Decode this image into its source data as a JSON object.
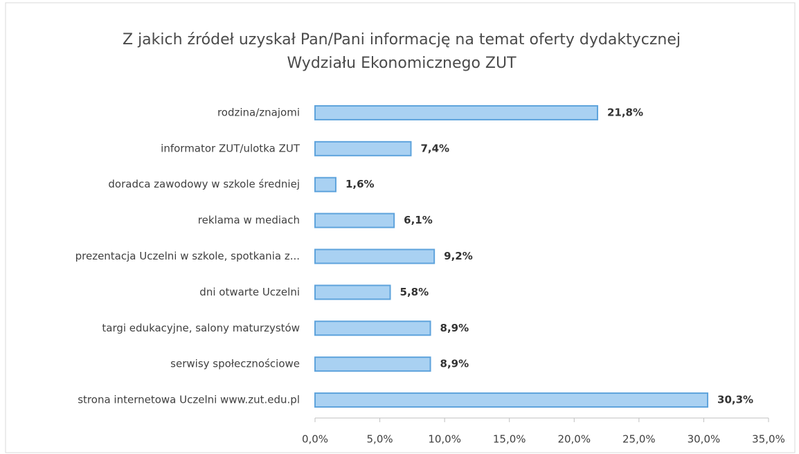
{
  "chart_data": {
    "type": "bar",
    "orientation": "horizontal",
    "title": [
      "Z jakich źródeł uzyskał Pan/Pani informację na temat oferty dydaktycznej",
      "Wydziału Ekonomicznego ZUT"
    ],
    "categories": [
      "rodzina/znajomi",
      "informator ZUT/ulotka ZUT",
      "doradca zawodowy w szkole średniej",
      "reklama w mediach",
      "prezentacja Uczelni w szkole,  spotkania z...",
      "dni otwarte Uczelni",
      "targi edukacyjne, salony maturzystów",
      "serwisy społecznościowe",
      "strona internetowa Uczelni www.zut.edu.pl"
    ],
    "values": [
      21.8,
      7.4,
      1.6,
      6.1,
      9.2,
      5.8,
      8.9,
      8.9,
      30.3
    ],
    "value_labels": [
      "21,8%",
      "7,4%",
      "1,6%",
      "6,1%",
      "9,2%",
      "5,8%",
      "8,9%",
      "8,9%",
      "30,3%"
    ],
    "color": "#a9d1f2",
    "edge_color": "#5ea3dc",
    "xlim": [
      0,
      35
    ],
    "xticks": [
      {
        "value": 0,
        "label": "0,0%"
      },
      {
        "value": 5,
        "label": "5,0%"
      },
      {
        "value": 10,
        "label": "10,0%"
      },
      {
        "value": 15,
        "label": "15,0%"
      },
      {
        "value": 20,
        "label": "20,0%"
      },
      {
        "value": 25,
        "label": "25,0%"
      },
      {
        "value": 30,
        "label": "30,0%"
      },
      {
        "value": 35,
        "label": "35,0%"
      }
    ],
    "grid": false
  }
}
